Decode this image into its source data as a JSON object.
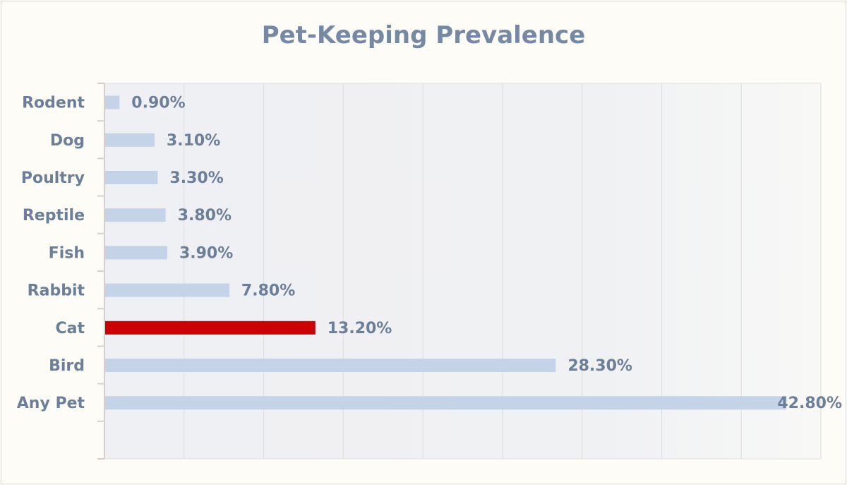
{
  "chart_data": {
    "type": "bar",
    "orientation": "horizontal",
    "title": "Pet-Keeping Prevalence",
    "categories": [
      "Rodent",
      "Dog",
      "Poultry",
      "Reptile",
      "Fish",
      "Rabbit",
      "Cat",
      "Bird",
      "Any Pet"
    ],
    "values": [
      0.9,
      3.1,
      3.3,
      3.8,
      3.9,
      7.8,
      13.2,
      28.3,
      42.8
    ],
    "data_labels": [
      "0.90%",
      "3.10%",
      "3.30%",
      "3.80%",
      "3.90%",
      "7.80%",
      "13.20%",
      "28.30%",
      "42.80%"
    ],
    "highlight": "Cat",
    "xlim": [
      0,
      45
    ],
    "x_gridline_step": 5,
    "grid": true,
    "xlabel": "",
    "ylabel": "",
    "colors": {
      "bar": "#c5d3e8",
      "highlight": "#cc0000",
      "text": "#6b7f99",
      "highlight_text": "#c00000"
    }
  }
}
